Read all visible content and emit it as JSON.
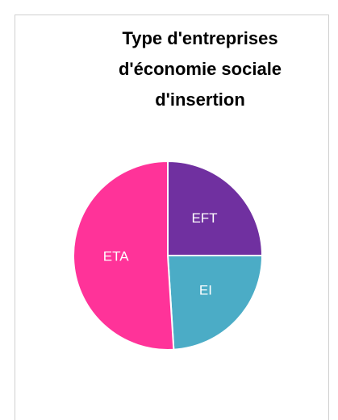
{
  "chart_data": {
    "type": "pie",
    "title": "Type d'entreprises d'économie sociale d'insertion",
    "categories": [
      "EFT",
      "EI",
      "ETA"
    ],
    "values": [
      25,
      24,
      51
    ],
    "colors": [
      "#7030a0",
      "#4bacc6",
      "#ff3399"
    ]
  }
}
